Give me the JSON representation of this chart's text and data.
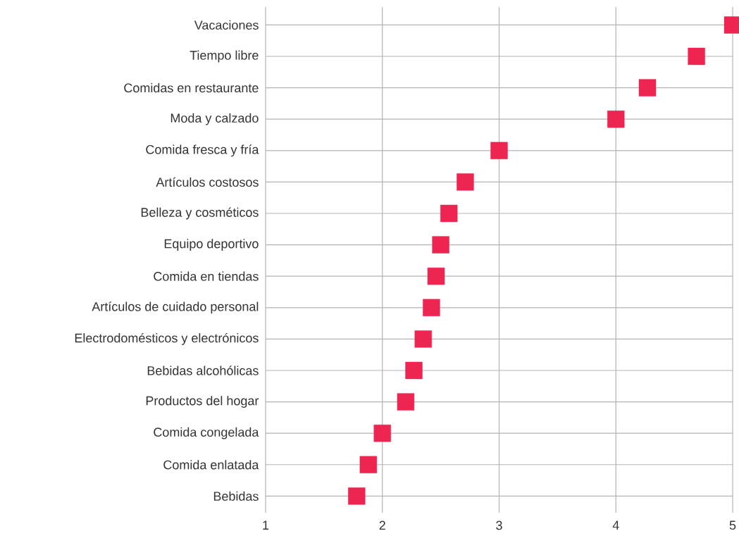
{
  "chart_data": {
    "type": "scatter",
    "orientation": "horizontal",
    "categories": [
      "Vacaciones",
      "Tiempo libre",
      "Comidas en restaurante",
      "Moda y calzado",
      "Comida fresca y fría",
      "Artículos costosos",
      "Belleza y cosméticos",
      "Equipo deportivo",
      "Comida en tiendas",
      "Artículos de cuidado personal",
      "Electrodomésticos y electrónicos",
      "Bebidas alcohólicas",
      "Productos del hogar",
      "Comida congelada",
      "Comida enlatada",
      "Bebidas"
    ],
    "values": [
      5.0,
      4.69,
      4.27,
      4.0,
      3.0,
      2.71,
      2.57,
      2.5,
      2.46,
      2.42,
      2.35,
      2.27,
      2.2,
      2.0,
      1.88,
      1.78
    ],
    "color": "#ed2550",
    "marker": "square",
    "xlim": [
      1,
      5
    ],
    "xticks": [
      1,
      2,
      3,
      4,
      5
    ],
    "grid": true
  }
}
